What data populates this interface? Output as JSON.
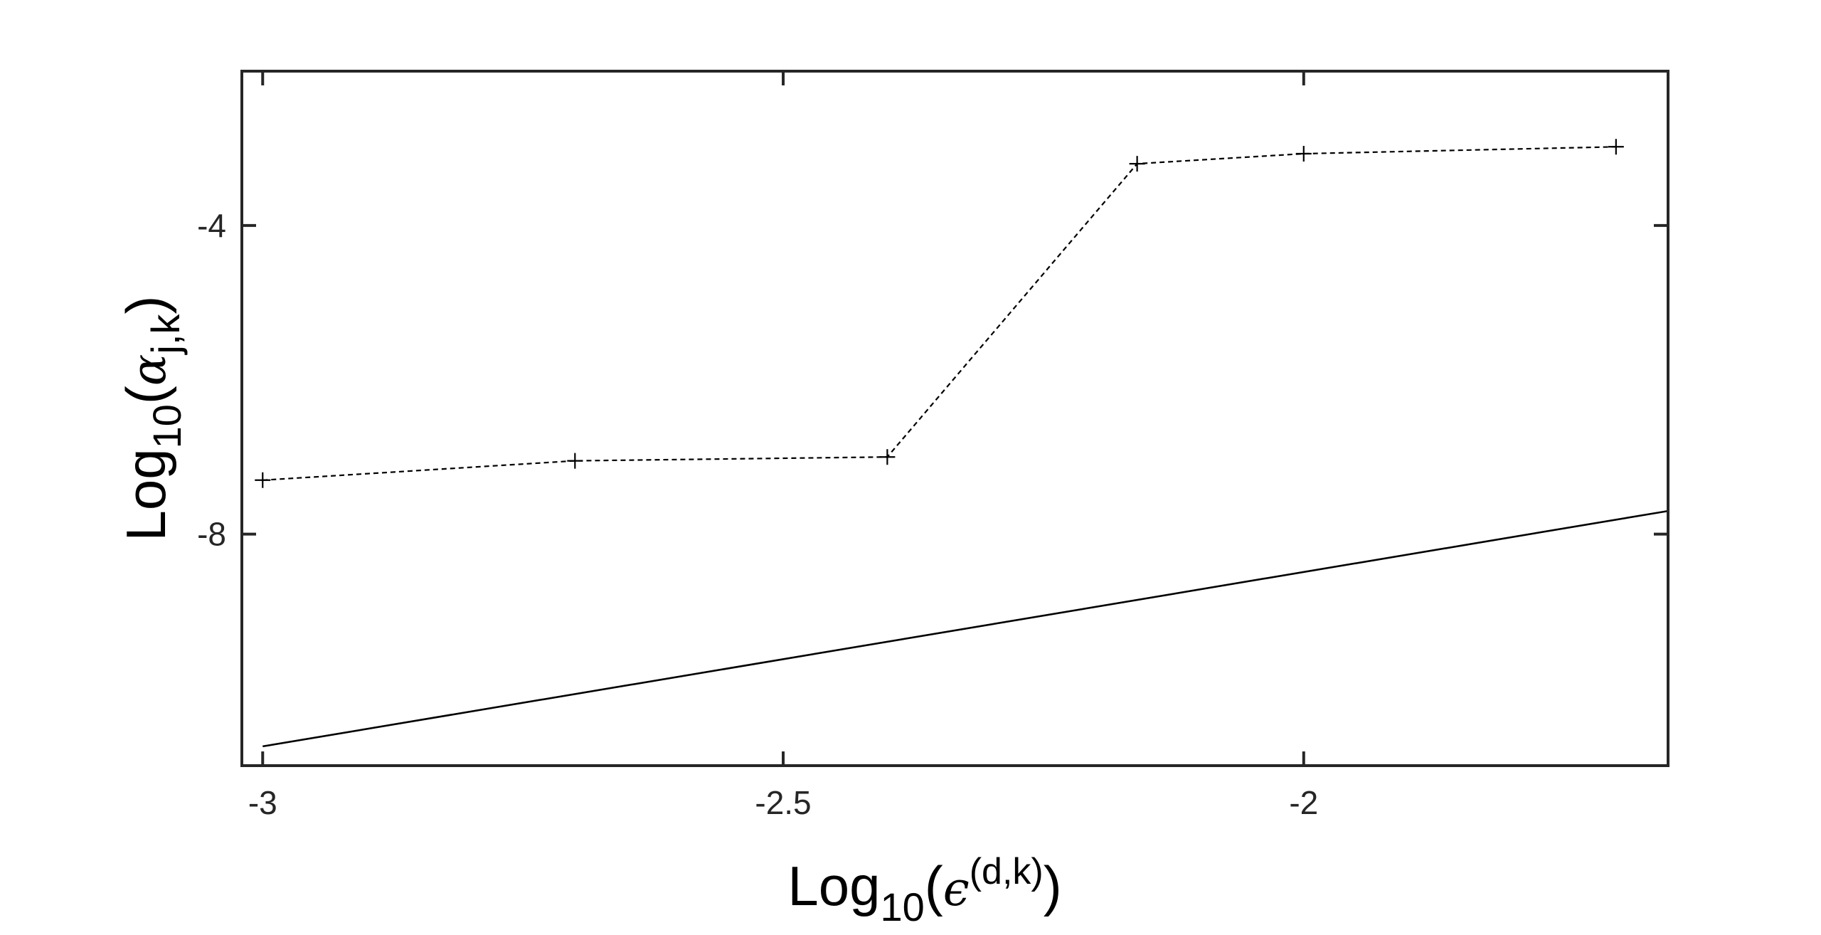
{
  "chart_data": {
    "type": "line",
    "title": "",
    "xlabel": {
      "base": "Log",
      "sub": "10",
      "open": "(",
      "symbol": "ϵ",
      "sup": "(d,k)",
      "close": ")"
    },
    "ylabel": {
      "base": "Log",
      "sub": "10",
      "open": "(",
      "symbol": "α",
      "sub2": "j,k",
      "close": ")"
    },
    "xlim": [
      -3.02,
      -1.65
    ],
    "ylim": [
      -11.0,
      -2.0
    ],
    "xticks": [
      -3,
      -2.5,
      -2
    ],
    "xtick_labels": [
      "-3",
      "-2.5",
      "-2"
    ],
    "yticks": [
      -4,
      -8
    ],
    "ytick_labels": [
      "-4",
      "-8"
    ],
    "grid": false,
    "legend": "none",
    "series": [
      {
        "style": "dashed",
        "marker": "+",
        "color": "#000000",
        "x": [
          -3.0,
          -2.7,
          -2.4,
          -2.16,
          -2.0,
          -1.7
        ],
        "y": [
          -7.3,
          -7.05,
          -7.0,
          -3.2,
          -3.07,
          -2.98
        ]
      },
      {
        "style": "solid",
        "marker": "none",
        "color": "#000000",
        "x": [
          -3.0,
          -1.65
        ],
        "y": [
          -10.75,
          -7.7
        ]
      }
    ]
  }
}
